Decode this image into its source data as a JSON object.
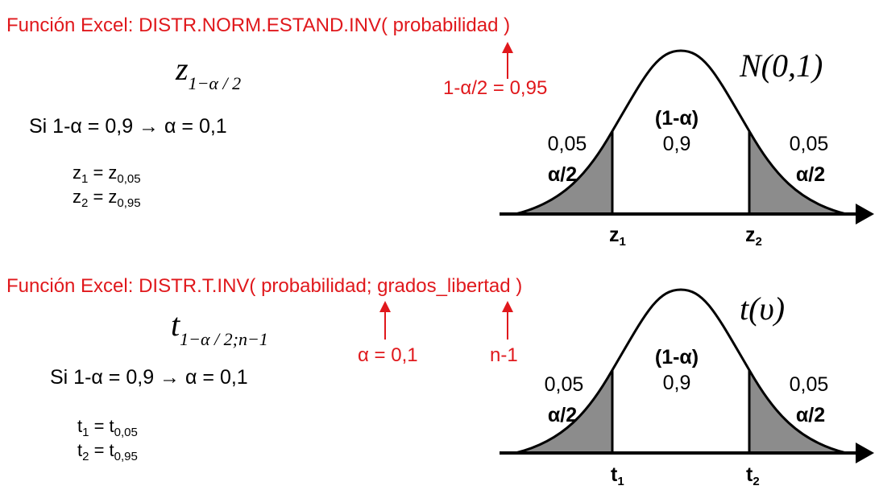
{
  "top": {
    "excel_text_prefix": "Función Excel: DISTR.NORM.ESTAND.INV( ",
    "excel_text_arg": "probabilidad",
    "excel_text_suffix": " )",
    "formula_main": "z",
    "formula_sub": "1−α / 2",
    "condition": "Si 1-α = 0,9 → α = 0,1",
    "z1_base": "z",
    "z1_sub": "1",
    "z1_eq": " = z",
    "z1_val": "0,05",
    "z2_base": "z",
    "z2_sub": "2",
    "z2_eq": " = z",
    "z2_val": "0,95",
    "arrow_label": "1-α/2 = 0,95",
    "dist_name": "N(0,1)",
    "center_label": "(1-α)",
    "center_value": "0,9",
    "left_value": "0,05",
    "left_label": "α/2",
    "right_value": "0,05",
    "right_label": "α/2",
    "x1_base": "z",
    "x1_sub": "1",
    "x2_base": "z",
    "x2_sub": "2"
  },
  "bottom": {
    "excel_text_prefix": "Función Excel: DISTR.T.INV( ",
    "excel_text_arg": "probabilidad; grados_libertad",
    "excel_text_suffix": " )",
    "formula_main": "t",
    "formula_sub": "1−α / 2;n−1",
    "condition": "Si 1-α = 0,9 → α = 0,1",
    "t1_base": "t",
    "t1_sub": "1",
    "t1_eq": " = t",
    "t1_val": "0,05",
    "t2_base": "t",
    "t2_sub": "2",
    "t2_eq": " = t",
    "t2_val": "0,95",
    "arrow1_label": "α = 0,1",
    "arrow2_label": "n-1",
    "dist_name": "t(υ)",
    "center_label": "(1-α)",
    "center_value": "0,9",
    "left_value": "0,05",
    "left_label": "α/2",
    "right_value": "0,05",
    "right_label": "α/2",
    "x1_base": "t",
    "x1_sub": "1",
    "x2_base": "t",
    "x2_sub": "2"
  },
  "colors": {
    "accent": "#e0181c",
    "tail_fill": "#8c8c8c",
    "line": "#000000"
  }
}
